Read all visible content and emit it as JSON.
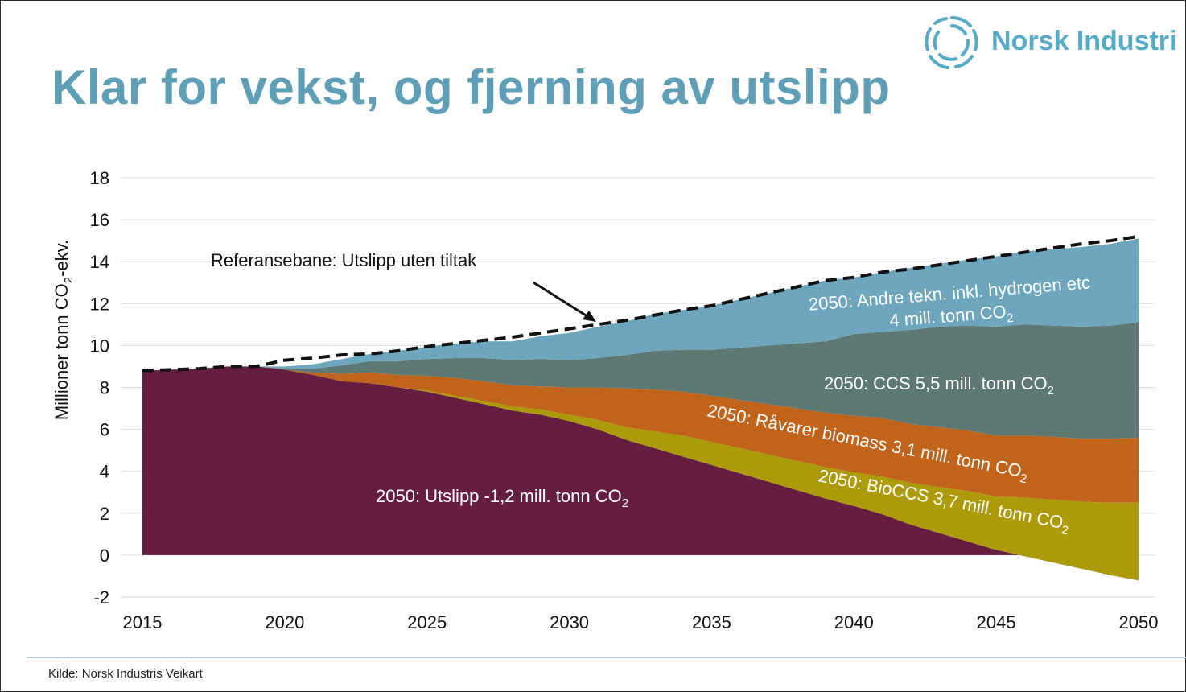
{
  "title": "Klar for vekst, og fjerning av utslipp",
  "logo": {
    "name": "Norsk Industri",
    "icon": "norsk-industri-ring-icon",
    "color": "#55aac6"
  },
  "source": "Kilde: Norsk Industris Veikart",
  "chart_data": {
    "type": "area",
    "stacked": true,
    "x": [
      2015,
      2016,
      2017,
      2018,
      2019,
      2020,
      2021,
      2022,
      2023,
      2024,
      2025,
      2026,
      2027,
      2028,
      2029,
      2030,
      2031,
      2032,
      2033,
      2034,
      2035,
      2036,
      2037,
      2038,
      2039,
      2040,
      2041,
      2042,
      2043,
      2044,
      2045,
      2046,
      2047,
      2048,
      2049,
      2050
    ],
    "xticks": [
      2015,
      2020,
      2025,
      2030,
      2035,
      2040,
      2045,
      2050
    ],
    "ylabel": "Millioner tonn CO₂-ekv.",
    "ylim": [
      -2,
      18
    ],
    "yticks": [
      -2,
      0,
      2,
      4,
      6,
      8,
      10,
      12,
      14,
      16,
      18
    ],
    "grid": true,
    "series": [
      {
        "color": "#651e42",
        "values": [
          8.8,
          8.85,
          8.9,
          9.0,
          9.0,
          8.85,
          8.6,
          8.3,
          8.2,
          8.0,
          7.8,
          7.5,
          7.2,
          6.9,
          6.7,
          6.4,
          6.0,
          5.5,
          5.1,
          4.7,
          4.3,
          3.9,
          3.5,
          3.1,
          2.7,
          2.35,
          1.95,
          1.45,
          1.05,
          0.65,
          0.25,
          -0.05,
          -0.35,
          -0.65,
          -0.95,
          -1.2
        ]
      },
      {
        "color": "#ac9a09",
        "values": [
          0,
          0,
          0,
          0,
          0,
          0,
          0,
          0,
          0,
          0,
          0.05,
          0.1,
          0.15,
          0.2,
          0.25,
          0.3,
          0.45,
          0.6,
          0.8,
          1.0,
          1.1,
          1.2,
          1.3,
          1.4,
          1.5,
          1.6,
          1.8,
          2.0,
          2.2,
          2.4,
          2.55,
          2.8,
          3.0,
          3.2,
          3.45,
          3.7
        ]
      },
      {
        "color": "#c0641b",
        "values": [
          0,
          0,
          0,
          0,
          0,
          0,
          0.1,
          0.35,
          0.5,
          0.6,
          0.7,
          0.85,
          0.95,
          1.0,
          1.1,
          1.3,
          1.55,
          1.85,
          2.0,
          2.1,
          2.2,
          2.3,
          2.4,
          2.5,
          2.6,
          2.7,
          2.8,
          2.8,
          2.85,
          2.9,
          2.9,
          2.95,
          3.0,
          3.0,
          3.05,
          3.1
        ]
      },
      {
        "color": "#5e7873",
        "values": [
          0,
          0,
          0,
          0,
          0,
          0.05,
          0.2,
          0.4,
          0.55,
          0.65,
          0.8,
          0.95,
          1.1,
          1.2,
          1.3,
          1.3,
          1.4,
          1.6,
          1.85,
          2.0,
          2.2,
          2.5,
          2.8,
          3.1,
          3.4,
          3.9,
          4.1,
          4.5,
          4.8,
          5.0,
          5.2,
          5.3,
          5.3,
          5.35,
          5.4,
          5.5
        ]
      },
      {
        "color": "#6ea7bd",
        "values": [
          0,
          0,
          0,
          0,
          0,
          0.1,
          0.2,
          0.3,
          0.35,
          0.5,
          0.6,
          0.7,
          0.8,
          0.9,
          1.1,
          1.3,
          1.5,
          1.6,
          1.75,
          1.9,
          2.1,
          2.3,
          2.5,
          2.7,
          2.9,
          2.7,
          2.85,
          2.95,
          3.0,
          3.15,
          3.35,
          3.5,
          3.65,
          3.8,
          3.9,
          4.0
        ]
      }
    ],
    "reference_line": {
      "label": "Referansebane: Utslipp uten tiltak",
      "style": "dashed",
      "values": [
        8.8,
        8.85,
        8.9,
        9.0,
        9.0,
        9.3,
        9.4,
        9.55,
        9.6,
        9.75,
        9.95,
        10.1,
        10.25,
        10.4,
        10.6,
        10.8,
        11.0,
        11.2,
        11.45,
        11.7,
        11.9,
        12.2,
        12.5,
        12.8,
        13.1,
        13.25,
        13.5,
        13.65,
        13.85,
        14.05,
        14.25,
        14.45,
        14.65,
        14.85,
        15.0,
        15.2
      ]
    },
    "annotations": [
      {
        "id": "andre",
        "line1": "2050: Andre tekn. inkl. hydrogen etc",
        "line2": "4 mill. tonn CO",
        "sub": "2"
      },
      {
        "id": "ccs",
        "text": "2050: CCS 5,5 mill. tonn CO",
        "sub": "2"
      },
      {
        "id": "ravarer",
        "text": "2050: Råvarer biomass 3,1 mill. tonn CO",
        "sub": "2"
      },
      {
        "id": "bioccs",
        "text": "2050: BioCCS 3,7 mill. tonn CO",
        "sub": "2"
      },
      {
        "id": "utslipp",
        "text": "2050: Utslipp -1,2 mill. tonn CO",
        "sub": "2"
      }
    ]
  }
}
